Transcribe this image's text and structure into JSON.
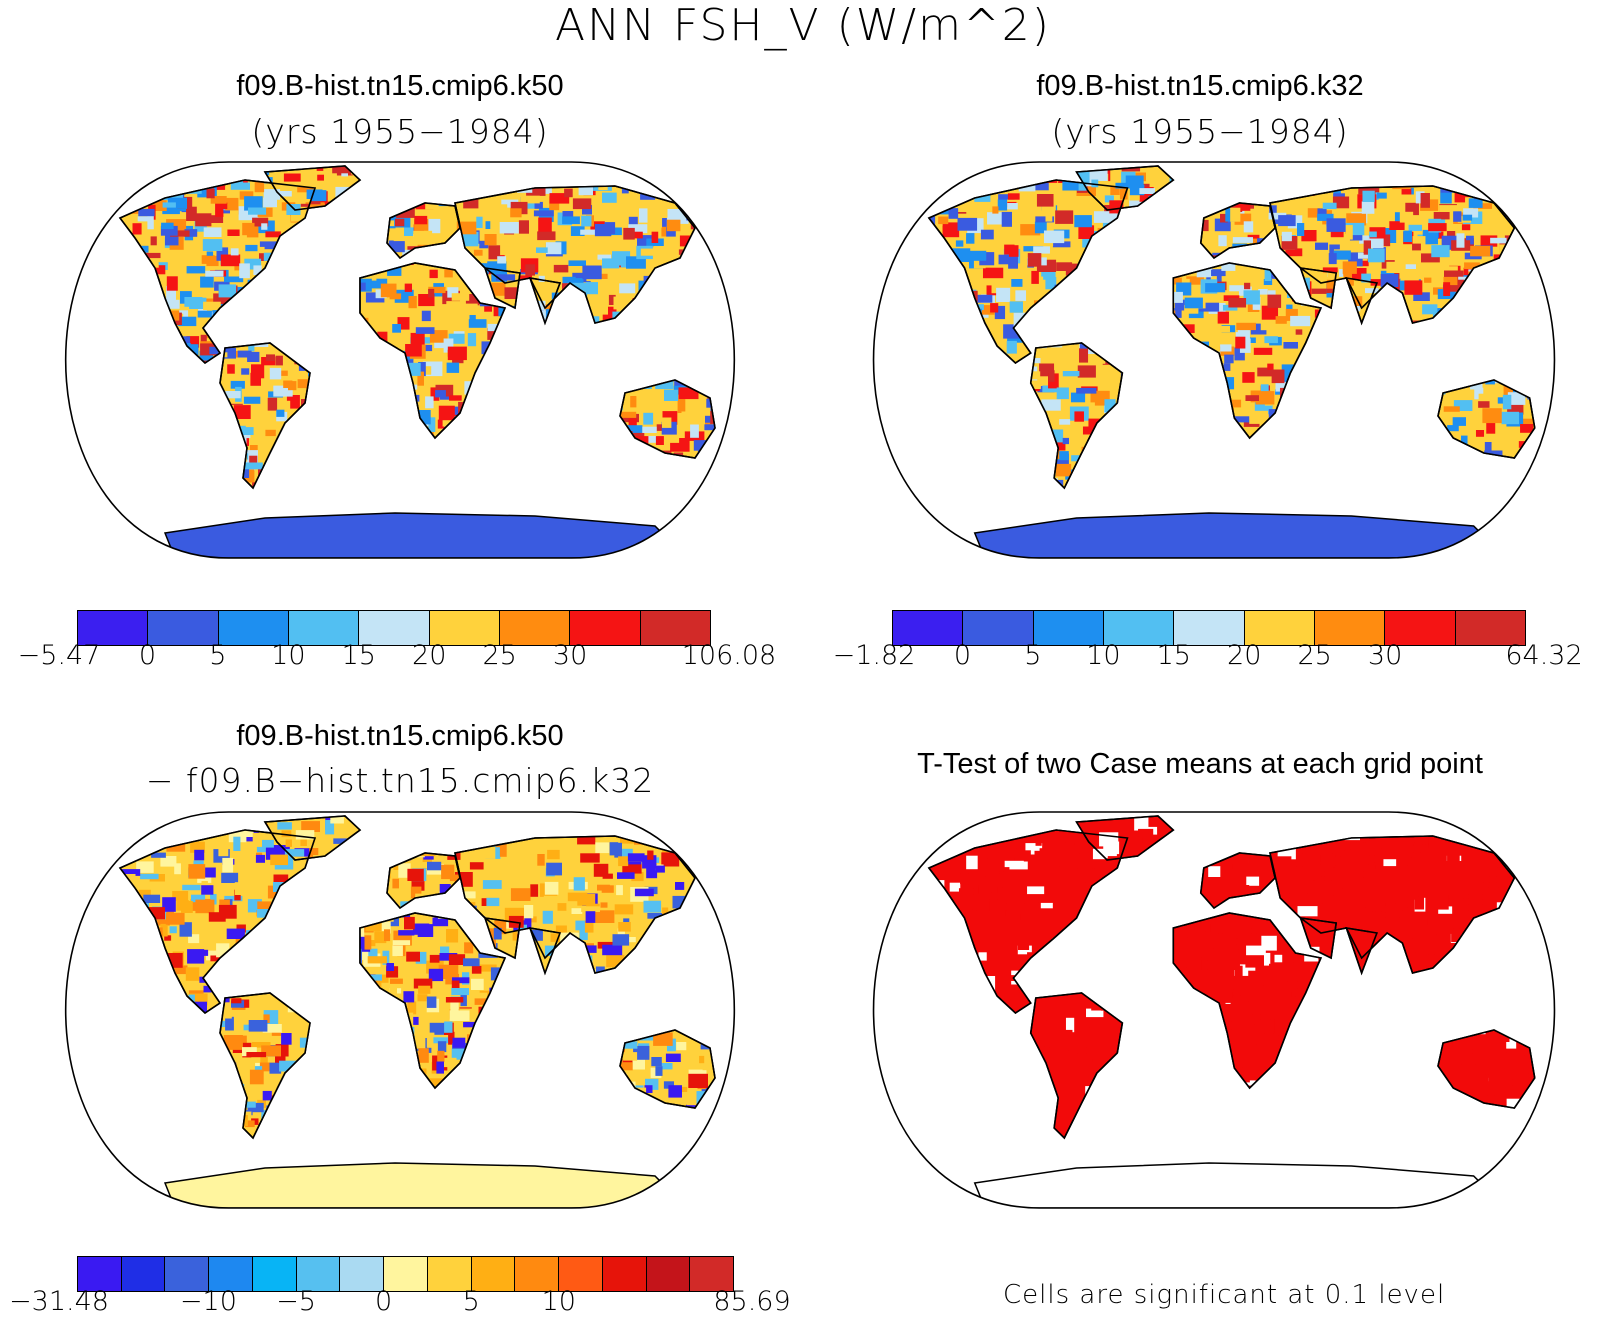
{
  "title": "ANN FSH_V (W/m^2)",
  "panels": {
    "top_left": {
      "title": "f09.B-hist.tn15.cmip6.k50",
      "subtitle": "(yrs 1955−1984)"
    },
    "top_right": {
      "title": "f09.B-hist.tn15.cmip6.k32",
      "subtitle": "(yrs 1955−1984)"
    },
    "bottom_left": {
      "title": "f09.B-hist.tn15.cmip6.k50",
      "subtitle": "− f09.B−hist.tn15.cmip6.k32"
    },
    "bottom_right": {
      "title": "T-Test of two Case means at each grid point",
      "note": "Cells are significant at 0.1 level"
    }
  },
  "colorbars": {
    "top_left": {
      "colors": [
        "#3b1ff0",
        "#3a5be0",
        "#1e8ff0",
        "#52bff2",
        "#c4e4f6",
        "#ffd23c",
        "#ff8c10",
        "#f51414",
        "#d22a28"
      ],
      "ticks": [
        "−5.47",
        "0",
        "5",
        "10",
        "15",
        "20",
        "25",
        "30",
        "106.08"
      ]
    },
    "top_right": {
      "colors": [
        "#3b1ff0",
        "#3a5be0",
        "#1e8ff0",
        "#52bff2",
        "#c4e4f6",
        "#ffd23c",
        "#ff8c10",
        "#f51414",
        "#d22a28"
      ],
      "ticks": [
        "−1.82",
        "0",
        "5",
        "10",
        "15",
        "20",
        "25",
        "30",
        "64.32"
      ]
    },
    "bottom_left": {
      "colors": [
        "#3a1af2",
        "#1f2ee6",
        "#3a62dc",
        "#1e88f0",
        "#08b4f5",
        "#56c0f0",
        "#aadaf2",
        "#fff59e",
        "#ffd23c",
        "#ffaf14",
        "#ff8a10",
        "#ff5a14",
        "#e6140a",
        "#c4141a",
        "#d22a28"
      ],
      "ticks": [
        "−31.48",
        "−10",
        "−5",
        "0",
        "5",
        "10",
        "85.69"
      ]
    }
  },
  "maps": {
    "top_left": {
      "antarctica_color": "#3a5be0",
      "fill_colors": [
        "#3a5be0",
        "#1e8ff0",
        "#52bff2",
        "#c4e4f6",
        "#ffd23c",
        "#ff8c10",
        "#f51414",
        "#d22a28"
      ]
    },
    "top_right": {
      "antarctica_color": "#3a5be0",
      "fill_colors": [
        "#3a5be0",
        "#1e8ff0",
        "#52bff2",
        "#c4e4f6",
        "#ffd23c",
        "#ff8c10",
        "#f51414",
        "#d22a28"
      ]
    },
    "bottom_left": {
      "antarctica_color": "#fff59e",
      "fill_colors": [
        "#3a1af2",
        "#3a62dc",
        "#56c0f0",
        "#fff59e",
        "#ffd23c",
        "#ffaf14",
        "#ff8a10",
        "#e6140a"
      ]
    },
    "bottom_right": {
      "antarctica_color": "#ffffff",
      "fill_colors": [
        "#f20a0a"
      ]
    }
  }
}
